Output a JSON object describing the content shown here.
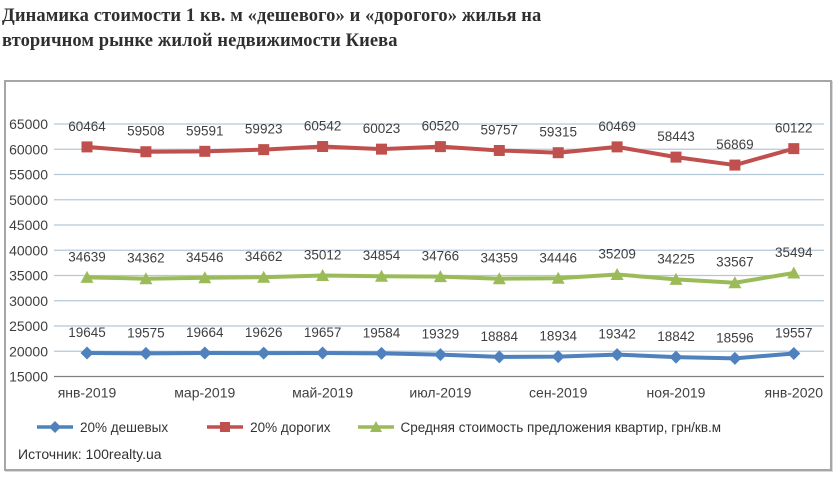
{
  "title": {
    "line1": "Динамика стоимости 1 кв. м «дешевого» и «дорогого» жилья на",
    "line2": "вторичном рынке жилой недвижимости Киева"
  },
  "source": "Источник: 100realty.ua",
  "chart_data": {
    "type": "line",
    "n_points": 13,
    "x_tick_labels": [
      "янв-2019",
      "мар-2019",
      "май-2019",
      "июл-2019",
      "сен-2019",
      "ноя-2019",
      "янв-2020"
    ],
    "x_tick_indices": [
      0,
      2,
      4,
      6,
      8,
      10,
      12
    ],
    "series": [
      {
        "name": "20% дешевых",
        "color": "#4F81BD",
        "marker": "diamond",
        "values": [
          19645,
          19575,
          19664,
          19626,
          19657,
          19584,
          19329,
          18884,
          18934,
          19342,
          18842,
          18596,
          19557
        ]
      },
      {
        "name": "20% дорогих",
        "color": "#C0504D",
        "marker": "square",
        "values": [
          60464,
          59508,
          59591,
          59923,
          60542,
          60023,
          60520,
          59757,
          59315,
          60469,
          58443,
          56869,
          60122
        ]
      },
      {
        "name": "Средняя стоимость предложения квартир, грн/кв.м",
        "color": "#9BBB59",
        "marker": "triangle",
        "values": [
          34639,
          34362,
          34546,
          34662,
          35012,
          34854,
          34766,
          34359,
          34446,
          35209,
          34225,
          33567,
          35494
        ]
      }
    ],
    "ylim": [
      15000,
      65000
    ],
    "y_step": 5000,
    "grid": true,
    "data_labels": true,
    "legend_position": "bottom",
    "colors": {
      "grid": "#b4c7d7",
      "axis": "#7f7f7f",
      "label": "#404040"
    }
  }
}
